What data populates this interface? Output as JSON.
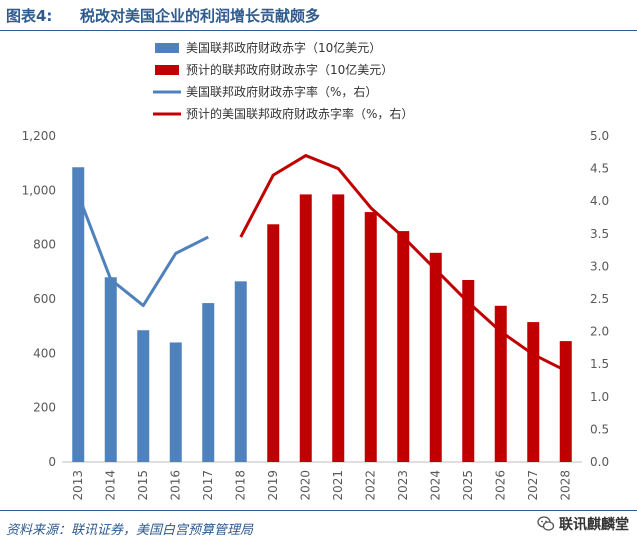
{
  "figure": {
    "label": "图表4:",
    "title": "税改对美国企业的利润增长贡献颇多"
  },
  "chart_data": {
    "type": "bar",
    "categories": [
      "2013",
      "2014",
      "2015",
      "2016",
      "2017",
      "2018",
      "2019",
      "2020",
      "2021",
      "2022",
      "2023",
      "2024",
      "2025",
      "2026",
      "2027",
      "2028"
    ],
    "series": [
      {
        "name": "美国联邦政府财政赤字（10亿美元）",
        "kind": "bar",
        "axis": "left",
        "color": "#4f81bd",
        "values": [
          1085,
          680,
          485,
          440,
          585,
          665,
          null,
          null,
          null,
          null,
          null,
          null,
          null,
          null,
          null,
          null
        ]
      },
      {
        "name": "预计的联邦政府财政赤字（10亿美元）",
        "kind": "bar",
        "axis": "left",
        "color": "#c00000",
        "values": [
          null,
          null,
          null,
          null,
          null,
          null,
          875,
          985,
          985,
          920,
          850,
          770,
          670,
          575,
          515,
          445
        ]
      },
      {
        "name": "美国联邦政府财政赤字率（%，右）",
        "kind": "line",
        "axis": "right",
        "color": "#4f81bd",
        "values": [
          4.1,
          2.8,
          2.4,
          3.2,
          3.45,
          null,
          null,
          null,
          null,
          null,
          null,
          null,
          null,
          null,
          null,
          null
        ]
      },
      {
        "name": "预计的美国联邦政府财政赤字率（%，右）",
        "kind": "line",
        "axis": "right",
        "color": "#c00000",
        "values": [
          null,
          null,
          null,
          null,
          null,
          3.45,
          4.4,
          4.7,
          4.5,
          3.9,
          3.45,
          2.95,
          2.45,
          2.0,
          1.65,
          1.4
        ]
      }
    ],
    "y_left": {
      "min": 0,
      "max": 1200,
      "ticks": [
        "0",
        "200",
        "400",
        "600",
        "800",
        "1,000",
        "1,200"
      ]
    },
    "y_right": {
      "min": 0,
      "max": 5,
      "ticks": [
        "0.0",
        "0.5",
        "1.0",
        "1.5",
        "2.0",
        "2.5",
        "3.0",
        "3.5",
        "4.0",
        "4.5",
        "5.0"
      ]
    },
    "legend_position": "top-left",
    "grid": false
  },
  "footer": {
    "source": "资料来源：联讯证券，美国白宫预算管理局",
    "watermark": "联讯麒麟堂"
  }
}
